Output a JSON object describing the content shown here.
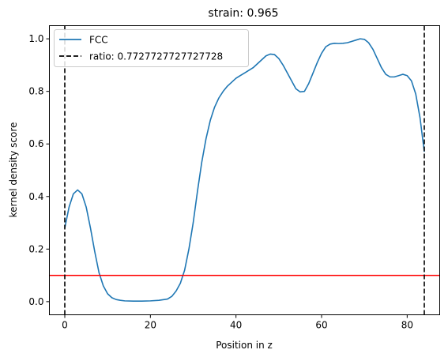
{
  "chart_data": {
    "type": "line",
    "title": "strain: 0.965",
    "xlabel": "Position in z",
    "ylabel": "kernel density score",
    "xlim": [
      -3.6,
      87.6
    ],
    "ylim": [
      -0.05,
      1.05
    ],
    "xticks": [
      0,
      20,
      40,
      60,
      80
    ],
    "yticks": [
      0.0,
      0.2,
      0.4,
      0.6,
      0.8,
      1.0
    ],
    "xtick_labels": [
      "0",
      "20",
      "40",
      "60",
      "80"
    ],
    "ytick_labels": [
      "0.0",
      "0.2",
      "0.4",
      "0.6",
      "0.8",
      "1.0"
    ],
    "grid": false,
    "legend_position": "upper-left",
    "series": [
      {
        "name": "FCC",
        "color": "#1f77b4",
        "style": "solid",
        "x": [
          0,
          1,
          2,
          3,
          4,
          5,
          6,
          7,
          8,
          9,
          10,
          11,
          12,
          13,
          14,
          16,
          18,
          20,
          22,
          24,
          25,
          26,
          27,
          28,
          29,
          30,
          31,
          32,
          33,
          34,
          35,
          36,
          37,
          38,
          39,
          40,
          41,
          42,
          43,
          44,
          45,
          46,
          47,
          48,
          49,
          50,
          51,
          52,
          53,
          54,
          55,
          56,
          57,
          58,
          59,
          60,
          61,
          62,
          63,
          64,
          65,
          66,
          67,
          68,
          69,
          70,
          71,
          72,
          73,
          74,
          75,
          76,
          77,
          78,
          79,
          80,
          81,
          82,
          83,
          84
        ],
        "y": [
          0.28,
          0.36,
          0.41,
          0.425,
          0.41,
          0.36,
          0.28,
          0.19,
          0.11,
          0.06,
          0.03,
          0.015,
          0.008,
          0.005,
          0.003,
          0.002,
          0.002,
          0.003,
          0.005,
          0.01,
          0.02,
          0.04,
          0.07,
          0.12,
          0.2,
          0.3,
          0.42,
          0.53,
          0.62,
          0.69,
          0.74,
          0.775,
          0.8,
          0.82,
          0.835,
          0.85,
          0.86,
          0.87,
          0.88,
          0.89,
          0.905,
          0.92,
          0.935,
          0.942,
          0.94,
          0.925,
          0.9,
          0.87,
          0.84,
          0.81,
          0.798,
          0.8,
          0.83,
          0.87,
          0.91,
          0.945,
          0.97,
          0.98,
          0.983,
          0.982,
          0.983,
          0.985,
          0.99,
          0.995,
          1.0,
          0.998,
          0.985,
          0.96,
          0.925,
          0.89,
          0.865,
          0.855,
          0.855,
          0.86,
          0.865,
          0.86,
          0.84,
          0.79,
          0.7,
          0.57
        ]
      },
      {
        "name": "ratio: 0.7727727727727728",
        "color": "#000000",
        "style": "dashed",
        "vlines": [
          0,
          84
        ]
      }
    ],
    "hline": {
      "y": 0.1,
      "color": "#ff0000"
    }
  }
}
